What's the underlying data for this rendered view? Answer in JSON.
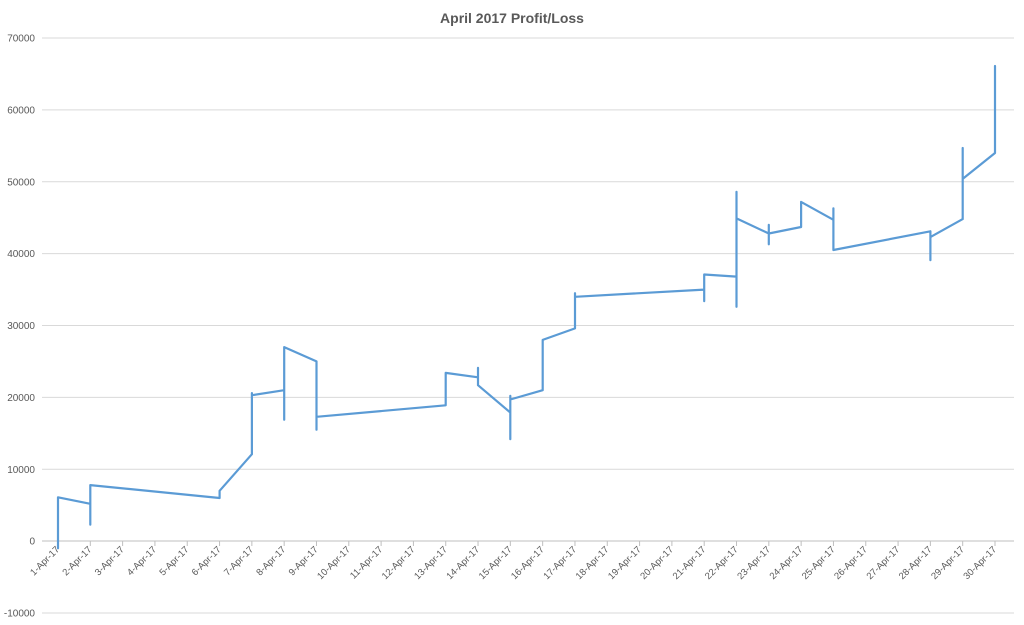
{
  "chart_data": {
    "type": "line",
    "title": "April 2017 Profit/Loss",
    "xlabel": "",
    "ylabel": "",
    "ylim": [
      -10000,
      70000
    ],
    "yticks": [
      -10000,
      0,
      10000,
      20000,
      30000,
      40000,
      50000,
      60000,
      70000
    ],
    "ytick_labels": [
      "-10000",
      "0",
      "10000",
      "20000",
      "30000",
      "40000",
      "50000",
      "60000",
      "70000"
    ],
    "grid": true,
    "legend": "none",
    "categories": [
      "1-Apr-17",
      "2-Apr-17",
      "3-Apr-17",
      "4-Apr-17",
      "5-Apr-17",
      "6-Apr-17",
      "7-Apr-17",
      "8-Apr-17",
      "9-Apr-17",
      "10-Apr-17",
      "11-Apr-17",
      "12-Apr-17",
      "13-Apr-17",
      "14-Apr-17",
      "15-Apr-17",
      "16-Apr-17",
      "17-Apr-17",
      "18-Apr-17",
      "19-Apr-17",
      "20-Apr-17",
      "21-Apr-17",
      "22-Apr-17",
      "23-Apr-17",
      "24-Apr-17",
      "25-Apr-17",
      "26-Apr-17",
      "27-Apr-17",
      "28-Apr-17",
      "29-Apr-17",
      "30-Apr-17"
    ],
    "series": [
      {
        "color": "#5b9bd5",
        "points": [
          [
            "1-Apr-17",
            -1000
          ],
          [
            "1-Apr-17",
            6100
          ],
          [
            "2-Apr-17",
            5200
          ],
          [
            "2-Apr-17",
            2300
          ],
          [
            "2-Apr-17",
            7800
          ],
          [
            "6-Apr-17",
            6000
          ],
          [
            "6-Apr-17",
            7000
          ],
          [
            "7-Apr-17",
            12100
          ],
          [
            "7-Apr-17",
            20600
          ],
          [
            "7-Apr-17",
            20300
          ],
          [
            "8-Apr-17",
            21000
          ],
          [
            "8-Apr-17",
            16900
          ],
          [
            "8-Apr-17",
            27000
          ],
          [
            "9-Apr-17",
            25000
          ],
          [
            "9-Apr-17",
            15500
          ],
          [
            "9-Apr-17",
            17300
          ],
          [
            "13-Apr-17",
            18900
          ],
          [
            "13-Apr-17",
            23400
          ],
          [
            "14-Apr-17",
            22800
          ],
          [
            "14-Apr-17",
            24100
          ],
          [
            "14-Apr-17",
            21700
          ],
          [
            "15-Apr-17",
            17900
          ],
          [
            "15-Apr-17",
            14200
          ],
          [
            "15-Apr-17",
            20200
          ],
          [
            "15-Apr-17",
            19700
          ],
          [
            "16-Apr-17",
            21000
          ],
          [
            "16-Apr-17",
            28000
          ],
          [
            "17-Apr-17",
            29600
          ],
          [
            "17-Apr-17",
            34500
          ],
          [
            "17-Apr-17",
            34000
          ],
          [
            "21-Apr-17",
            35000
          ],
          [
            "21-Apr-17",
            33400
          ],
          [
            "21-Apr-17",
            37100
          ],
          [
            "22-Apr-17",
            36800
          ],
          [
            "22-Apr-17",
            32600
          ],
          [
            "22-Apr-17",
            48600
          ],
          [
            "22-Apr-17",
            44900
          ],
          [
            "23-Apr-17",
            42800
          ],
          [
            "23-Apr-17",
            44000
          ],
          [
            "23-Apr-17",
            41300
          ],
          [
            "23-Apr-17",
            42800
          ],
          [
            "24-Apr-17",
            43700
          ],
          [
            "24-Apr-17",
            47200
          ],
          [
            "25-Apr-17",
            44700
          ],
          [
            "25-Apr-17",
            46300
          ],
          [
            "25-Apr-17",
            40500
          ],
          [
            "28-Apr-17",
            43100
          ],
          [
            "28-Apr-17",
            39100
          ],
          [
            "28-Apr-17",
            42300
          ],
          [
            "29-Apr-17",
            44800
          ],
          [
            "29-Apr-17",
            54700
          ],
          [
            "29-Apr-17",
            50400
          ],
          [
            "30-Apr-17",
            54000
          ],
          [
            "30-Apr-17",
            66100
          ]
        ]
      }
    ]
  }
}
